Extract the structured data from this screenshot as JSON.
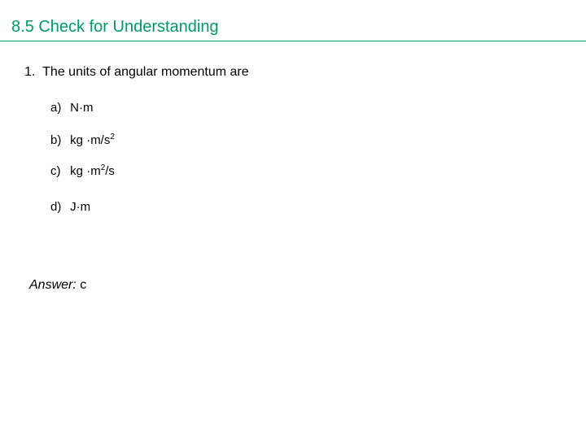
{
  "heading": {
    "text": "8.5 Check for Understanding",
    "color": "#009966",
    "underline_color": "#009966",
    "fontsize": 20
  },
  "question": {
    "number": "1.",
    "text": "The units of angular momentum are",
    "fontsize": 16,
    "color": "#000000"
  },
  "options": {
    "a": {
      "letter": "a)",
      "plain": "N",
      "dot": "·",
      "tail": "m",
      "sup": ""
    },
    "b": {
      "letter": "b)",
      "plain": "kg ",
      "dot": "·",
      "tail": "m/s",
      "sup": "2"
    },
    "c": {
      "letter": "c)",
      "plain": "kg ",
      "dot": "·",
      "tail_pre": "m",
      "sup": "2",
      "tail_post": "/s"
    },
    "d": {
      "letter": "d)",
      "plain": "J",
      "dot": "·",
      "tail": "m",
      "sup": ""
    }
  },
  "answer": {
    "label": "Answer:",
    "value": " c",
    "fontsize": 16
  },
  "colors": {
    "background": "#ffffff",
    "text": "#000000"
  }
}
